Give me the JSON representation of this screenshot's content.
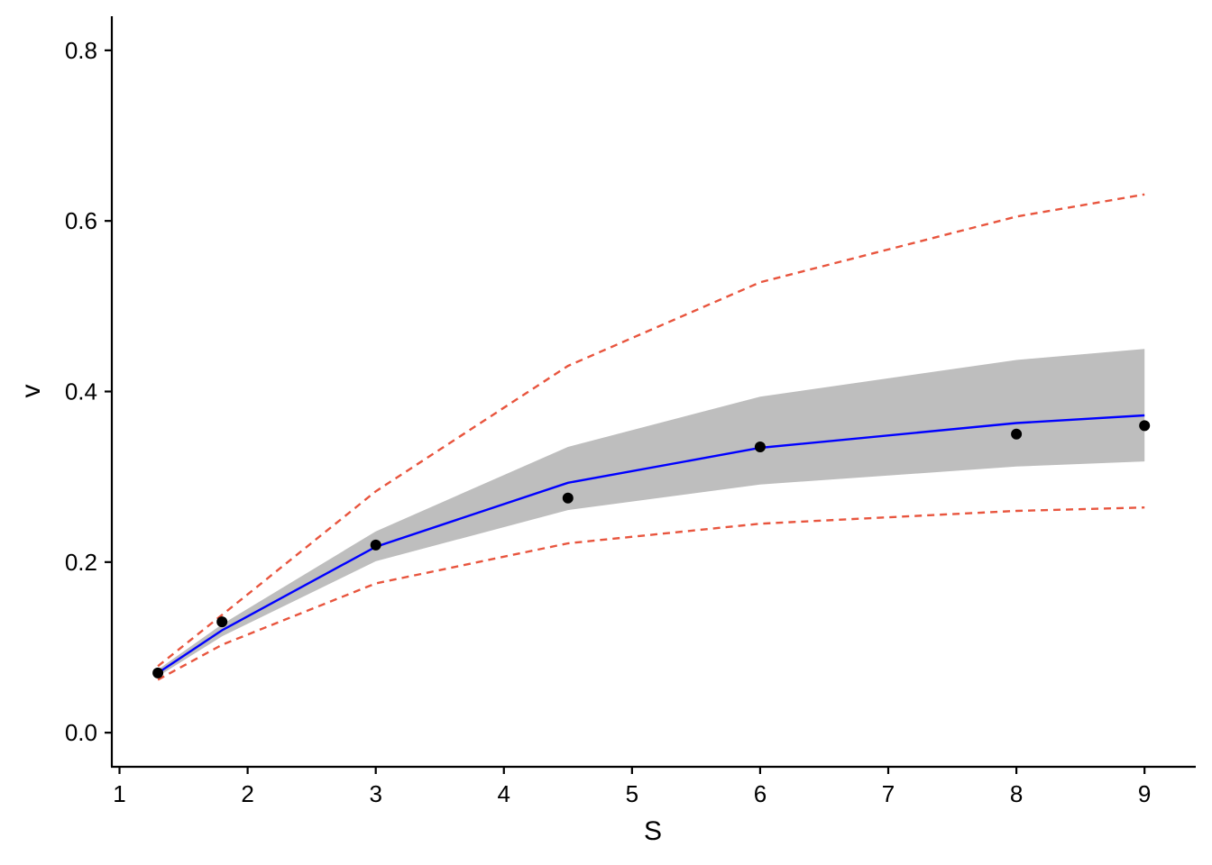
{
  "chart_data": {
    "type": "line",
    "title": "",
    "xlabel": "S",
    "ylabel": "v",
    "xlim": [
      0.94,
      9.4
    ],
    "ylim": [
      -0.04,
      0.84
    ],
    "x_ticks": [
      1,
      2,
      3,
      4,
      5,
      6,
      7,
      8,
      9
    ],
    "x_tick_labels": [
      "1",
      "2",
      "3",
      "4",
      "5",
      "6",
      "7",
      "8",
      "9"
    ],
    "y_ticks": [
      0.0,
      0.2,
      0.4,
      0.6,
      0.8
    ],
    "y_tick_labels": [
      "0.0",
      "0.2",
      "0.4",
      "0.6",
      "0.8"
    ],
    "grid": false,
    "legend": "none",
    "x": [
      1.3,
      1.8,
      3.0,
      4.5,
      6.0,
      8.0,
      9.0
    ],
    "observed": [
      0.07,
      0.13,
      0.22,
      0.275,
      0.335,
      0.35,
      0.36
    ],
    "fit": [
      0.07,
      0.12,
      0.218,
      0.293,
      0.334,
      0.363,
      0.372
    ],
    "confidence_band": {
      "lower": [
        0.066,
        0.113,
        0.201,
        0.261,
        0.291,
        0.312,
        0.318
      ],
      "upper": [
        0.074,
        0.127,
        0.236,
        0.335,
        0.394,
        0.437,
        0.45
      ]
    },
    "prediction_interval": {
      "lower": [
        0.062,
        0.103,
        0.175,
        0.222,
        0.245,
        0.26,
        0.264
      ],
      "upper": [
        0.078,
        0.138,
        0.283,
        0.43,
        0.528,
        0.605,
        0.631
      ]
    },
    "colors": {
      "fit": "#0000ff",
      "band": "#bebebe",
      "interval": "#e8553e",
      "points": "#000000",
      "axis": "#000000"
    }
  }
}
